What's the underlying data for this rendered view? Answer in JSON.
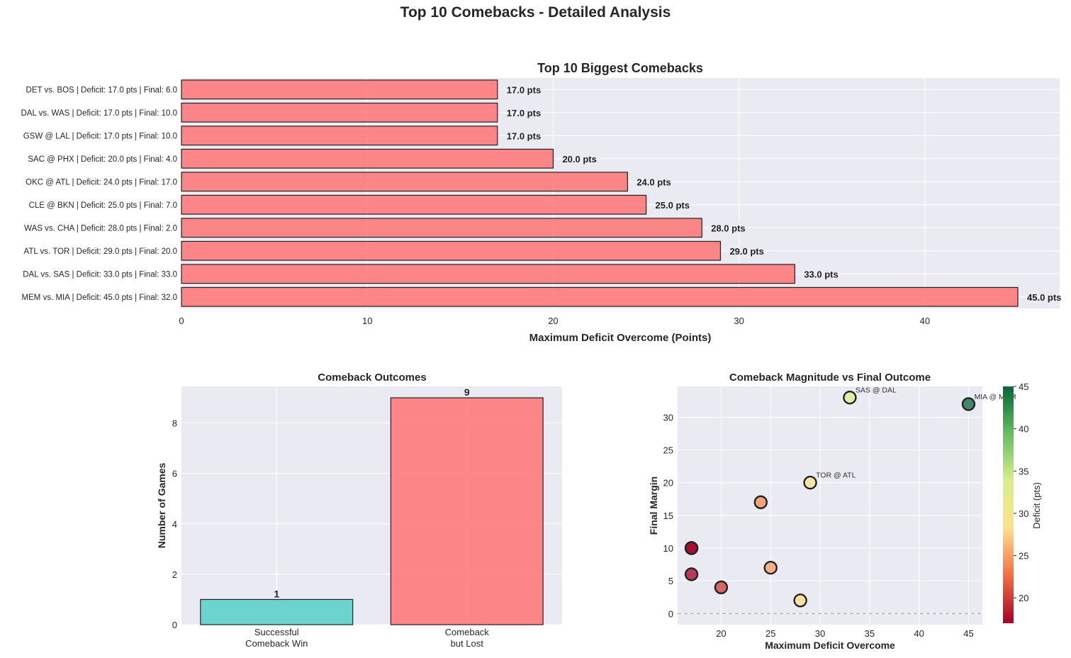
{
  "figure": {
    "title": "Top 10 Comebacks - Detailed Analysis"
  },
  "colors": {
    "panel_bg": "#eaeaf2",
    "bar_red": "#ff6b6b",
    "bar_teal": "#4ecdc4",
    "edge": "#222222",
    "grid": "#ffffff"
  },
  "chart_data": [
    {
      "type": "bar",
      "orientation": "horizontal",
      "title": "Top 10 Biggest Comebacks",
      "xlabel": "Maximum Deficit Overcome (Points)",
      "ylabel": "",
      "xlim": [
        0,
        47.25
      ],
      "xticks": [
        0,
        10,
        20,
        30,
        40
      ],
      "grid": true,
      "categories": [
        "DET vs. BOS | Deficit: 17.0 pts | Final: 6.0",
        "DAL vs. WAS | Deficit: 17.0 pts | Final: 10.0",
        "GSW @ LAL | Deficit: 17.0 pts | Final: 10.0",
        "SAC @ PHX | Deficit: 20.0 pts | Final: 4.0",
        "OKC @ ATL | Deficit: 24.0 pts | Final: 17.0",
        "CLE @ BKN | Deficit: 25.0 pts | Final: 7.0",
        "WAS vs. CHA | Deficit: 28.0 pts | Final: 2.0",
        "ATL vs. TOR | Deficit: 29.0 pts | Final: 20.0",
        "DAL vs. SAS | Deficit: 33.0 pts | Final: 33.0",
        "MEM vs. MIA | Deficit: 45.0 pts | Final: 32.0"
      ],
      "values": [
        17,
        17,
        17,
        20,
        24,
        25,
        28,
        29,
        33,
        45
      ],
      "data_labels": [
        "17.0 pts",
        "17.0 pts",
        "17.0 pts",
        "20.0 pts",
        "24.0 pts",
        "25.0 pts",
        "28.0 pts",
        "29.0 pts",
        "33.0 pts",
        "45.0 pts"
      ]
    },
    {
      "type": "bar",
      "title": "Comeback Outcomes",
      "xlabel": "",
      "ylabel": "Number of Games",
      "ylim": [
        0,
        9.45
      ],
      "yticks": [
        0,
        2,
        4,
        6,
        8
      ],
      "grid": true,
      "categories": [
        [
          "Successful",
          "Comeback Win"
        ],
        [
          "Comeback",
          "but Lost"
        ]
      ],
      "values": [
        1,
        9
      ],
      "data_labels": [
        "1",
        "9"
      ],
      "colors": [
        "#4ecdc4",
        "#ff6b6b"
      ]
    },
    {
      "type": "scatter",
      "title": "Comeback Magnitude vs Final Outcome",
      "xlabel": "Maximum Deficit Overcome",
      "ylabel": "Final Margin",
      "xlim": [
        15.6,
        46.4
      ],
      "ylim": [
        -1.7,
        34.7
      ],
      "xticks": [
        20,
        25,
        30,
        35,
        40,
        45
      ],
      "yticks": [
        0,
        5,
        10,
        15,
        20,
        25,
        30
      ],
      "reference_line_y": 0,
      "grid": true,
      "points": [
        {
          "x": 17,
          "y": 6
        },
        {
          "x": 17,
          "y": 10
        },
        {
          "x": 17,
          "y": 10
        },
        {
          "x": 20,
          "y": 4
        },
        {
          "x": 24,
          "y": 17
        },
        {
          "x": 25,
          "y": 7
        },
        {
          "x": 28,
          "y": 2
        },
        {
          "x": 29,
          "y": 20,
          "label": "TOR @ ATL"
        },
        {
          "x": 33,
          "y": 33,
          "label": "SAS @ DAL"
        },
        {
          "x": 45,
          "y": 32,
          "label": "MIA @ MEM"
        }
      ],
      "colorbar": {
        "label": "Deficit (pts)",
        "range": [
          17,
          45
        ],
        "ticks": [
          20,
          25,
          30,
          35,
          40,
          45
        ],
        "colormap": "RdYlGn",
        "colormap_stops": [
          "#a50026",
          "#f46d43",
          "#fee08b",
          "#d9ef8b",
          "#66bd63",
          "#006837"
        ]
      }
    }
  ]
}
